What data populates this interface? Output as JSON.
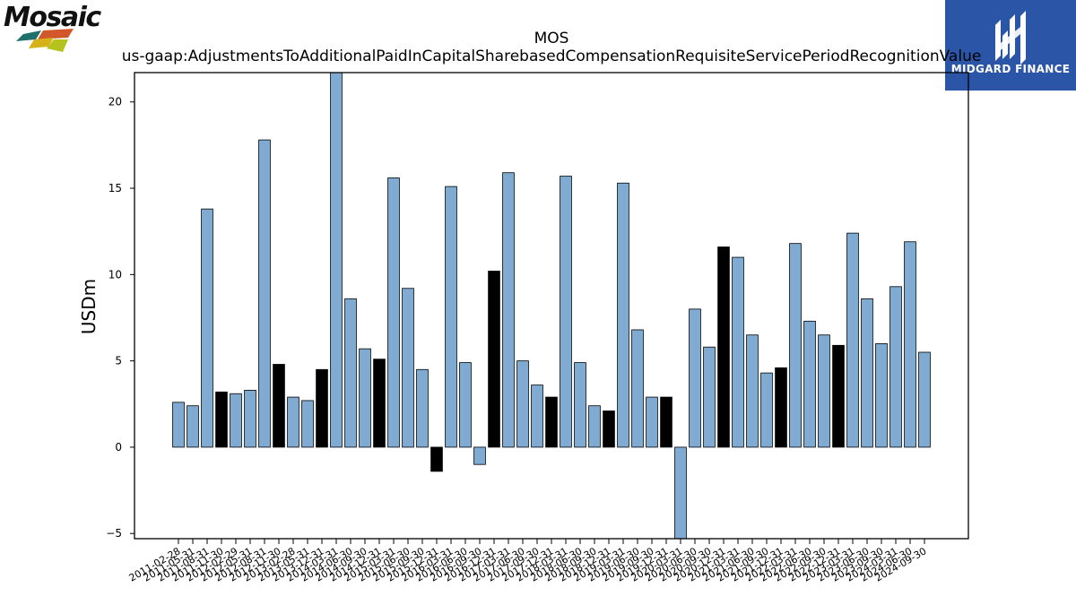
{
  "brand_logo": {
    "text": "Mosaic"
  },
  "logo_badge": {
    "text": "MIDGARD FINANCE"
  },
  "colors": {
    "bar_default": "#7faad2",
    "bar_highlight": "#000000",
    "bar_edge": "#000000",
    "axis": "#000000"
  },
  "chart_data": {
    "type": "bar",
    "title": "MOS",
    "subtitle": "us-gaap:AdjustmentsToAdditionalPaidInCapitalSharebasedCompensationRequisiteServicePeriodRecognitionValue",
    "xlabel": "",
    "ylabel": "USDm",
    "ylim": [
      -5.3,
      21.7
    ],
    "yticks": [
      -5,
      0,
      5,
      10,
      15,
      20
    ],
    "grid": false,
    "categories": [
      "2011-02-28",
      "2011-05-31",
      "2011-08-31",
      "2011-11-30",
      "2012-02-29",
      "2012-05-31",
      "2012-08-31",
      "2012-11-30",
      "2013-02-28",
      "2013-05-31",
      "2013-12-31",
      "2014-03-31",
      "2014-06-30",
      "2014-09-30",
      "2014-12-31",
      "2015-03-31",
      "2015-06-30",
      "2015-09-30",
      "2015-12-31",
      "2016-03-31",
      "2016-06-30",
      "2016-09-30",
      "2016-12-31",
      "2017-03-31",
      "2017-06-30",
      "2017-09-30",
      "2017-12-31",
      "2018-03-31",
      "2018-06-30",
      "2018-09-30",
      "2018-12-31",
      "2019-03-31",
      "2019-06-30",
      "2019-09-30",
      "2019-12-31",
      "2020-03-31",
      "2020-06-30",
      "2020-09-30",
      "2020-12-31",
      "2021-03-31",
      "2021-06-30",
      "2021-09-30",
      "2021-12-31",
      "2022-03-31",
      "2022-06-30",
      "2022-09-30",
      "2022-12-31",
      "2023-03-31",
      "2023-06-30",
      "2023-09-30",
      "2024-03-31",
      "2024-06-30",
      "2024-09-30"
    ],
    "values": [
      2.6,
      2.4,
      13.8,
      3.2,
      3.1,
      3.3,
      17.8,
      4.8,
      2.9,
      2.7,
      4.5,
      21.7,
      8.6,
      5.7,
      5.1,
      15.6,
      9.2,
      4.5,
      -1.4,
      15.1,
      4.9,
      -1.0,
      10.2,
      15.9,
      5.0,
      3.6,
      2.9,
      15.7,
      4.9,
      2.4,
      2.1,
      15.3,
      6.8,
      2.9,
      2.9,
      -5.3,
      8.0,
      5.8,
      11.6,
      11.0,
      6.5,
      4.3,
      4.6,
      11.8,
      7.3,
      6.5,
      5.9,
      12.4,
      8.6,
      6.0,
      9.3,
      11.9,
      5.5
    ],
    "highlighted": [
      false,
      false,
      false,
      true,
      false,
      false,
      false,
      true,
      false,
      false,
      true,
      false,
      false,
      false,
      true,
      false,
      false,
      false,
      true,
      false,
      false,
      false,
      true,
      false,
      false,
      false,
      true,
      false,
      false,
      false,
      true,
      false,
      false,
      false,
      true,
      false,
      false,
      false,
      true,
      false,
      false,
      false,
      true,
      false,
      false,
      false,
      true,
      false,
      false,
      false,
      false,
      false,
      false
    ]
  }
}
